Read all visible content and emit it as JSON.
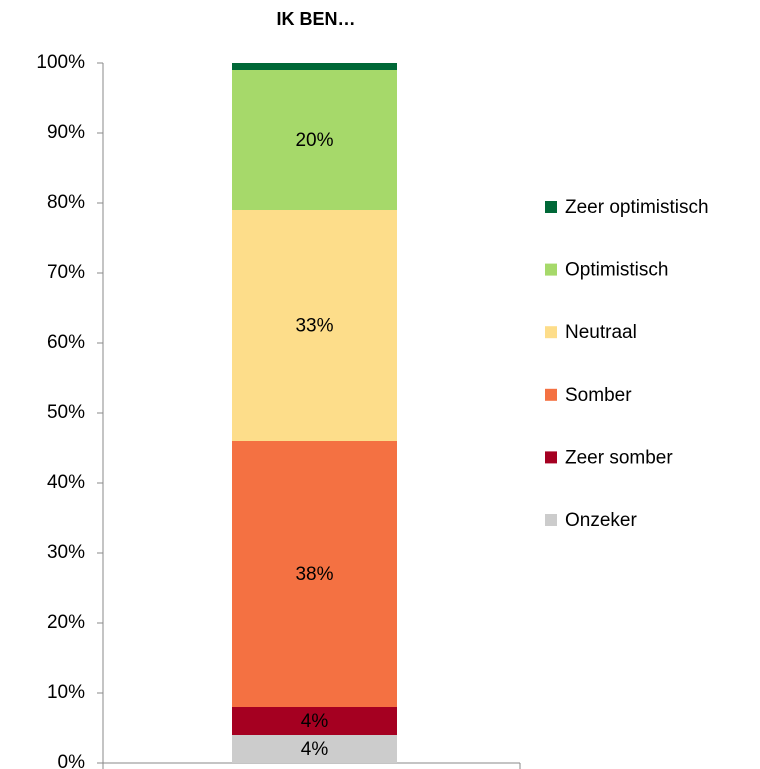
{
  "chart_data": {
    "type": "stacked_bar",
    "title": "IK BEN…",
    "categories": [
      null
    ],
    "series": [
      {
        "name": "Onzeker",
        "color": "#cccccc",
        "values": [
          4
        ],
        "value_labels": [
          "4%"
        ]
      },
      {
        "name": "Zeer somber",
        "color": "#a50021",
        "values": [
          4
        ],
        "value_labels": [
          "4%"
        ]
      },
      {
        "name": "Somber",
        "color": "#f47142",
        "values": [
          38
        ],
        "value_labels": [
          "38%"
        ]
      },
      {
        "name": "Neutraal",
        "color": "#fddd8a",
        "values": [
          33
        ],
        "value_labels": [
          "33%"
        ]
      },
      {
        "name": "Optimistisch",
        "color": "#a6d96a",
        "values": [
          20
        ],
        "value_labels": [
          "20%"
        ]
      },
      {
        "name": "Zeer optimistisch",
        "color": "#006837",
        "values": [
          1
        ]
      }
    ],
    "ylim": [
      0,
      100
    ],
    "yticks": [
      {
        "value": 0,
        "label": "0%"
      },
      {
        "value": 10,
        "label": "10%"
      },
      {
        "value": 20,
        "label": "20%"
      },
      {
        "value": 30,
        "label": "30%"
      },
      {
        "value": 40,
        "label": "40%"
      },
      {
        "value": 50,
        "label": "50%"
      },
      {
        "value": 60,
        "label": "60%"
      },
      {
        "value": 70,
        "label": "70%"
      },
      {
        "value": 80,
        "label": "80%"
      },
      {
        "value": 90,
        "label": "90%"
      },
      {
        "value": 100,
        "label": "100%"
      }
    ],
    "legend": "right"
  }
}
